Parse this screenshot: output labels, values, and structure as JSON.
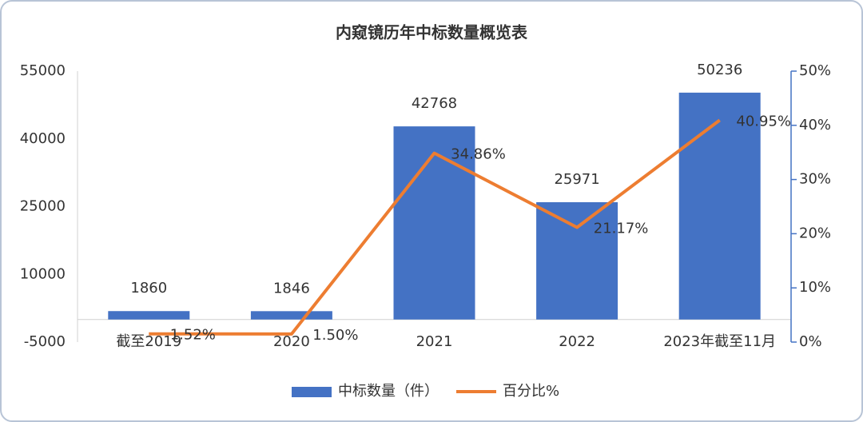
{
  "chart_data": {
    "type": "bar_line",
    "title": "内窥镜历年中标数量概览表",
    "categories": [
      "截至2019",
      "2020",
      "2021",
      "2022",
      "2023年截至11月"
    ],
    "series": [
      {
        "name": "中标数量（件）",
        "type": "bar",
        "color": "#4472c4",
        "values": [
          1860,
          1846,
          42768,
          25971,
          50236
        ]
      },
      {
        "name": "百分比%",
        "type": "line",
        "color": "#ed7d31",
        "axis": "y2",
        "values": [
          1.52,
          1.5,
          34.86,
          21.17,
          40.95
        ],
        "value_labels": [
          "1.52%",
          "1.50%",
          "34.86%",
          "21.17%",
          "40.95%"
        ]
      }
    ],
    "ylim": [
      -5000,
      55000
    ],
    "yticks": [
      -5000,
      10000,
      25000,
      40000,
      55000
    ],
    "y2lim": [
      0,
      50
    ],
    "y2ticks": [
      {
        "value": 0,
        "label": "0%"
      },
      {
        "value": 10,
        "label": "10%"
      },
      {
        "value": 20,
        "label": "20%"
      },
      {
        "value": 30,
        "label": "30%"
      },
      {
        "value": 40,
        "label": "40%"
      },
      {
        "value": 50,
        "label": "50%"
      }
    ],
    "grid": false,
    "legend": "bottom"
  }
}
